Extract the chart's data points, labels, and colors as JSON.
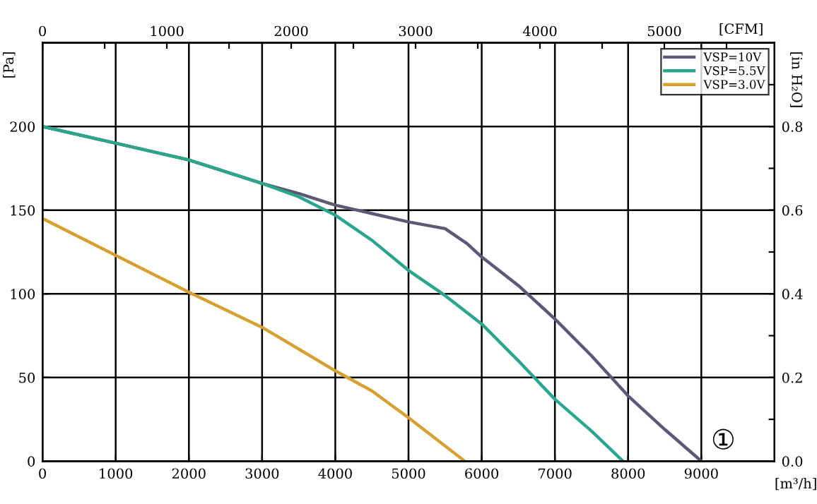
{
  "chart_data": {
    "type": "line",
    "xlabel": "[m³/h]",
    "ylabel": "[Pa]",
    "y2label": "[in H₂O]",
    "x2label": "[CFM]",
    "xlim": [
      0,
      10000
    ],
    "xticks": [
      0,
      1000,
      2000,
      3000,
      4000,
      5000,
      6000,
      7000,
      8000,
      9000
    ],
    "ylim": [
      0,
      250
    ],
    "yticks": [
      0,
      50,
      100,
      150,
      200
    ],
    "y2lim": [
      0,
      1.0
    ],
    "y2ticks": [
      {
        "value": 0,
        "label": "0.0"
      },
      {
        "value": 0.1,
        "label": null
      },
      {
        "value": 0.2,
        "label": "0.2"
      },
      {
        "value": 0.3,
        "label": null
      },
      {
        "value": 0.4,
        "label": "0.4"
      },
      {
        "value": 0.5,
        "label": null
      },
      {
        "value": 0.6,
        "label": "0.6"
      },
      {
        "value": 0.7,
        "label": null
      },
      {
        "value": 0.8,
        "label": "0.8"
      },
      {
        "value": 0.9,
        "label": null
      }
    ],
    "x2lim": [
      0,
      5886
    ],
    "x2ticks": [
      0,
      {
        "value": 500,
        "label": null
      },
      1000,
      {
        "value": 1500,
        "label": null
      },
      2000,
      {
        "value": 2500,
        "label": null
      },
      3000,
      {
        "value": 3500,
        "label": null
      },
      4000,
      {
        "value": 4500,
        "label": null
      },
      5000,
      {
        "value": 5500,
        "label": null
      }
    ],
    "grid": true,
    "legend": "top right",
    "marker": "none",
    "line_style": "solid",
    "annotations": [
      "①"
    ],
    "series": [
      {
        "name": "VSP=10V",
        "color": "#5a5a78",
        "x": [
          0,
          1000,
          2000,
          3000,
          3500,
          4000,
          4500,
          5000,
          5500,
          5800,
          6000,
          6500,
          7000,
          7500,
          8000,
          8500,
          9000
        ],
        "values": [
          200,
          190,
          180,
          166,
          160,
          153,
          148,
          143,
          139,
          130,
          122,
          105,
          85,
          63,
          39,
          19,
          0
        ]
      },
      {
        "name": "VSP=5.5V",
        "color": "#2aa58e",
        "x": [
          0,
          1000,
          2000,
          3000,
          3500,
          4000,
          4500,
          5000,
          5500,
          6000,
          6500,
          7000,
          7500,
          7930
        ],
        "values": [
          200,
          190,
          180,
          166,
          158,
          147,
          132,
          114,
          99,
          82,
          60,
          37,
          18,
          0
        ]
      },
      {
        "name": "VSP=3.0V",
        "color": "#d7a030",
        "x": [
          0,
          1000,
          2000,
          3000,
          4000,
          4500,
          5000,
          5770
        ],
        "values": [
          145,
          123,
          101,
          80,
          54,
          42,
          26,
          0
        ]
      }
    ]
  }
}
